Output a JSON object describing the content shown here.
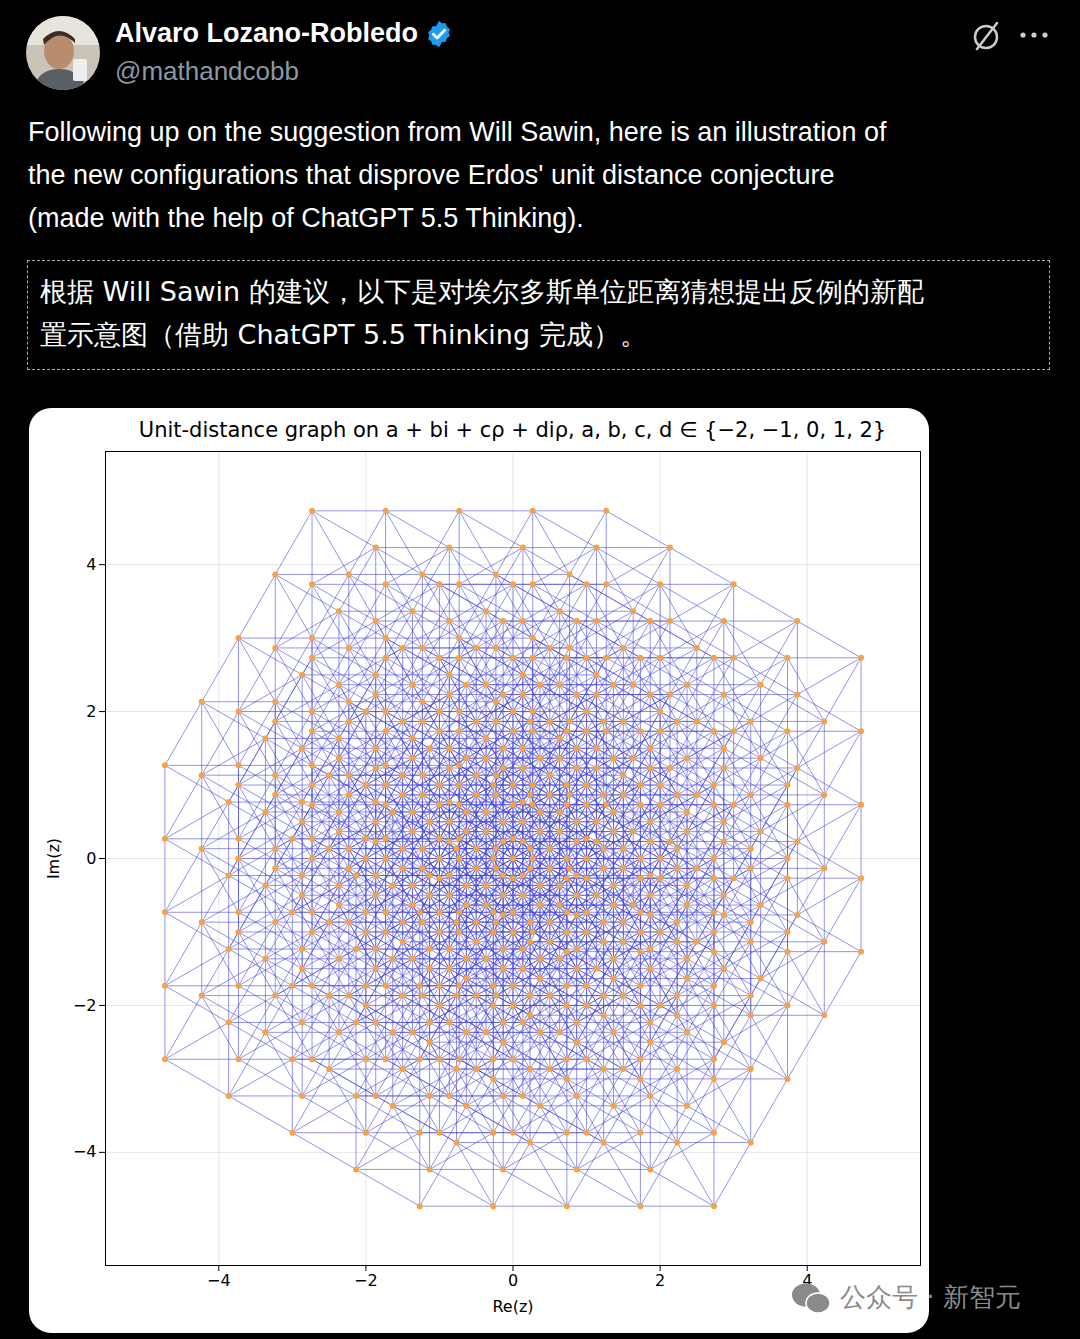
{
  "post": {
    "author": "Alvaro Lozano-Robledo",
    "handle": "@mathandcobb",
    "text_lines": [
      "Following up on the suggestion from Will Sawin, here is an illustration of",
      "the new configurations that disprove Erdos' unit distance conjecture",
      "(made with the help of ChatGPT 5.5 Thinking)."
    ],
    "translation_lines": [
      "根据 Will Sawin 的建议，以下是对埃尔多斯单位距离猜想提出反例的新配",
      "置示意图（借助 ChatGPT 5.5 Thinking 完成）。"
    ],
    "watermark": "公众号 · 新智元"
  },
  "chart_data": {
    "type": "network",
    "title": "Unit-distance graph on a + bi + cρ + diρ, a, b, c, d ∈ {−2, −1, 0, 1, 2}",
    "xlabel": "Re(z)",
    "ylabel": "Im(z)",
    "coefficients": [
      -2,
      -1,
      0,
      1,
      2
    ],
    "basis": {
      "re": [
        1,
        0,
        0.5,
        -0.8660254037844386
      ],
      "im": [
        0,
        1,
        0.8660254037844386,
        0.5
      ]
    },
    "xlim": [
      -5.54,
      5.54
    ],
    "ylim": [
      -5.54,
      5.54
    ],
    "xticks": [
      -4,
      -2,
      0,
      2,
      4
    ],
    "yticks": [
      -4,
      -2,
      0,
      2,
      4
    ],
    "grid": true,
    "colors": [
      "#3a3ad8",
      "#f2a548"
    ],
    "marker": "o",
    "line_style": "solid"
  }
}
